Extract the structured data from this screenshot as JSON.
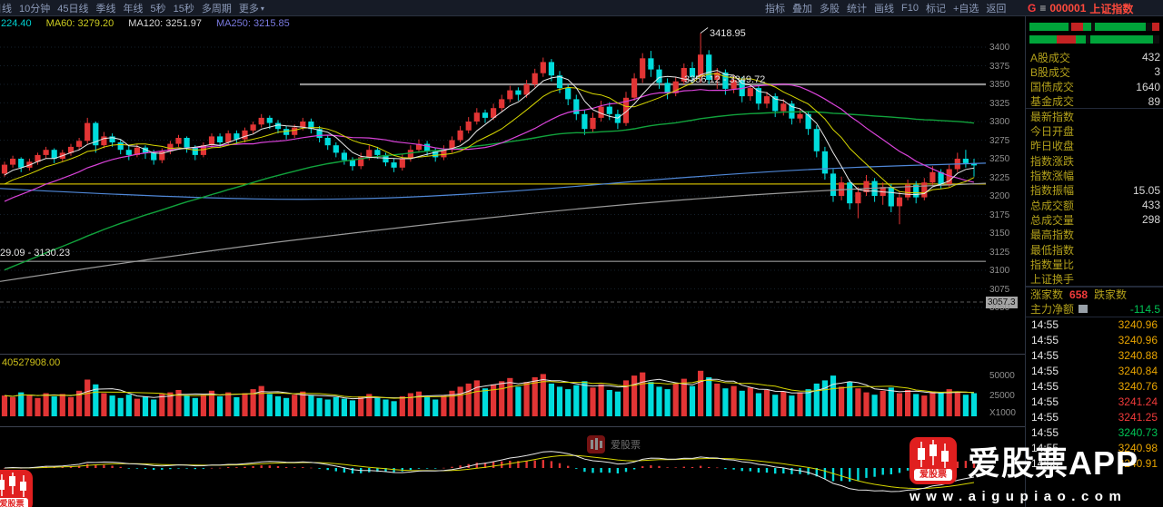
{
  "toolbar": {
    "left_items": [
      "日线",
      "10分钟",
      "45日线",
      "季线",
      "年线",
      "5秒",
      "15秒",
      "多周期",
      "更多"
    ],
    "more_arrow": "▾",
    "right_items": [
      "指标",
      "叠加",
      "多股",
      "统计",
      "画线",
      "F10",
      "标记",
      "+自选",
      "返回"
    ]
  },
  "symbol": {
    "prefix": "G",
    "eq": "≡",
    "code": "000001",
    "name": "上证指数"
  },
  "ma_labels": [
    {
      "text": "224.40",
      "color": "#00cfcf"
    },
    {
      "text": "MA60: 3279.20",
      "color": "#cdcd21"
    },
    {
      "text": "MA120: 3251.97",
      "color": "#d9d9d9"
    },
    {
      "text": "MA250: 3215.85",
      "color": "#7a7ae0"
    }
  ],
  "annotations": {
    "peak": "3418.95",
    "range_line": "3356.12 - 3349.72",
    "left_range": "29.09 - 3130.23",
    "axis_box": "3057.3",
    "volume_label": "40527908.00",
    "volume_axis": [
      "50000",
      "25000",
      "X1000"
    ]
  },
  "sidebar": {
    "breadth_rows": [
      [
        [
          "#00a43a",
          44
        ],
        [
          "#0d0d0d",
          4
        ],
        [
          "#c52323",
          13
        ],
        [
          "#00a43a",
          9
        ],
        [
          "#0d0d0d",
          5
        ],
        [
          "#00a43a",
          57
        ],
        [
          "#0d0d0d",
          8
        ],
        [
          "#c52323",
          8
        ]
      ],
      [
        [
          "#00a43a",
          30
        ],
        [
          "#c52323",
          21
        ],
        [
          "#00a43a",
          11
        ],
        [
          "#0d0d0d",
          5
        ],
        [
          "#00a43a",
          70
        ],
        [
          "#0d0d0d",
          7
        ]
      ]
    ],
    "stats": [
      {
        "label": "A股成交",
        "value": "432"
      },
      {
        "label": "B股成交",
        "value": "3"
      },
      {
        "label": "国债成交",
        "value": "1640"
      },
      {
        "label": "基金成交",
        "value": "89"
      },
      {
        "label": "最新指数",
        "value": ""
      },
      {
        "label": "今日开盘",
        "value": ""
      },
      {
        "label": "昨日收盘",
        "value": ""
      },
      {
        "label": "指数涨跌",
        "value": ""
      },
      {
        "label": "指数涨幅",
        "value": ""
      },
      {
        "label": "指数振幅",
        "value": "15.05"
      },
      {
        "label": "总成交额",
        "value": "433"
      },
      {
        "label": "总成交量",
        "value": "298"
      },
      {
        "label": "最高指数",
        "value": ""
      },
      {
        "label": "最低指数",
        "value": ""
      },
      {
        "label": "指数量比",
        "value": ""
      },
      {
        "label": "上证换手",
        "value": ""
      }
    ],
    "breadth_summary": {
      "up_label": "涨家数",
      "up_value": "658",
      "down_label": "跌家数"
    },
    "main_net": {
      "label": "主力净额",
      "value": "-114.5"
    },
    "ticks": [
      {
        "time": "14:55",
        "price": "3240.96",
        "color": "#e8a400"
      },
      {
        "time": "14:55",
        "price": "3240.96",
        "color": "#e8a400"
      },
      {
        "time": "14:55",
        "price": "3240.88",
        "color": "#e8a400"
      },
      {
        "time": "14:55",
        "price": "3240.84",
        "color": "#e8a400"
      },
      {
        "time": "14:55",
        "price": "3240.76",
        "color": "#e8a400"
      },
      {
        "time": "14:55",
        "price": "3241.24",
        "color": "#f03a3a"
      },
      {
        "time": "14:55",
        "price": "3241.25",
        "color": "#f03a3a"
      },
      {
        "time": "14:55",
        "price": "3240.73",
        "color": "#00c455"
      },
      {
        "time": "14:55",
        "price": "3240.98",
        "color": "#e8a400"
      },
      {
        "time": "14:55",
        "price": "3240.91",
        "color": "#e8a400"
      }
    ]
  },
  "branding": {
    "app_name": "爱股票APP",
    "url": "www.aigupiao.com",
    "icon_text": "爱股票"
  },
  "chart_data": {
    "type": "candlestick",
    "symbol": "000001 上证指数",
    "y_axis_ticks": [
      3400,
      3375,
      3350,
      3325,
      3300,
      3275,
      3250,
      3225,
      3200,
      3175,
      3150,
      3125,
      3100,
      3075,
      3050
    ],
    "ref_lines": {
      "yellow": 3216,
      "upper_gray": 3350,
      "lower_gray": 3112,
      "dashed": 3057.3
    },
    "peak_value": 3418.95,
    "candles": [
      [
        3230,
        3246,
        3226,
        3242
      ],
      [
        3242,
        3254,
        3238,
        3250
      ],
      [
        3250,
        3252,
        3232,
        3238
      ],
      [
        3238,
        3250,
        3234,
        3246
      ],
      [
        3246,
        3258,
        3242,
        3255
      ],
      [
        3255,
        3266,
        3250,
        3262
      ],
      [
        3262,
        3264,
        3244,
        3250
      ],
      [
        3250,
        3262,
        3246,
        3258
      ],
      [
        3258,
        3270,
        3254,
        3266
      ],
      [
        3266,
        3278,
        3262,
        3274
      ],
      [
        3274,
        3305,
        3270,
        3298
      ],
      [
        3298,
        3300,
        3258,
        3268
      ],
      [
        3268,
        3286,
        3264,
        3280
      ],
      [
        3280,
        3284,
        3266,
        3272
      ],
      [
        3272,
        3276,
        3256,
        3262
      ],
      [
        3262,
        3268,
        3248,
        3255
      ],
      [
        3255,
        3270,
        3252,
        3265
      ],
      [
        3265,
        3268,
        3250,
        3258
      ],
      [
        3258,
        3262,
        3242,
        3248
      ],
      [
        3248,
        3264,
        3244,
        3260
      ],
      [
        3260,
        3274,
        3256,
        3270
      ],
      [
        3270,
        3282,
        3266,
        3278
      ],
      [
        3278,
        3280,
        3258,
        3265
      ],
      [
        3265,
        3268,
        3248,
        3255
      ],
      [
        3255,
        3272,
        3252,
        3268
      ],
      [
        3268,
        3284,
        3264,
        3280
      ],
      [
        3280,
        3284,
        3266,
        3272
      ],
      [
        3272,
        3288,
        3268,
        3284
      ],
      [
        3284,
        3288,
        3270,
        3276
      ],
      [
        3276,
        3292,
        3272,
        3288
      ],
      [
        3288,
        3300,
        3284,
        3296
      ],
      [
        3296,
        3310,
        3292,
        3305
      ],
      [
        3305,
        3308,
        3290,
        3298
      ],
      [
        3298,
        3302,
        3284,
        3290
      ],
      [
        3290,
        3294,
        3276,
        3282
      ],
      [
        3282,
        3296,
        3278,
        3292
      ],
      [
        3292,
        3305,
        3288,
        3300
      ],
      [
        3300,
        3304,
        3284,
        3290
      ],
      [
        3290,
        3294,
        3272,
        3278
      ],
      [
        3278,
        3282,
        3262,
        3268
      ],
      [
        3268,
        3272,
        3252,
        3258
      ],
      [
        3258,
        3262,
        3242,
        3248
      ],
      [
        3248,
        3252,
        3234,
        3240
      ],
      [
        3240,
        3258,
        3236,
        3252
      ],
      [
        3252,
        3268,
        3248,
        3262
      ],
      [
        3262,
        3266,
        3250,
        3255
      ],
      [
        3255,
        3258,
        3240,
        3245
      ],
      [
        3245,
        3250,
        3232,
        3238
      ],
      [
        3238,
        3256,
        3234,
        3250
      ],
      [
        3250,
        3268,
        3246,
        3262
      ],
      [
        3262,
        3276,
        3258,
        3270
      ],
      [
        3270,
        3274,
        3254,
        3260
      ],
      [
        3260,
        3264,
        3246,
        3252
      ],
      [
        3252,
        3268,
        3248,
        3262
      ],
      [
        3262,
        3280,
        3258,
        3275
      ],
      [
        3275,
        3294,
        3272,
        3288
      ],
      [
        3288,
        3306,
        3284,
        3300
      ],
      [
        3300,
        3318,
        3296,
        3312
      ],
      [
        3312,
        3316,
        3298,
        3305
      ],
      [
        3305,
        3324,
        3302,
        3318
      ],
      [
        3318,
        3336,
        3314,
        3330
      ],
      [
        3330,
        3348,
        3326,
        3342
      ],
      [
        3342,
        3346,
        3328,
        3336
      ],
      [
        3336,
        3356,
        3332,
        3350
      ],
      [
        3350,
        3371,
        3346,
        3365
      ],
      [
        3365,
        3386,
        3360,
        3380
      ],
      [
        3380,
        3384,
        3354,
        3362
      ],
      [
        3362,
        3368,
        3338,
        3345
      ],
      [
        3345,
        3350,
        3322,
        3330
      ],
      [
        3330,
        3336,
        3302,
        3310
      ],
      [
        3310,
        3316,
        3282,
        3290
      ],
      [
        3290,
        3312,
        3286,
        3305
      ],
      [
        3305,
        3328,
        3300,
        3320
      ],
      [
        3320,
        3326,
        3302,
        3310
      ],
      [
        3310,
        3316,
        3290,
        3298
      ],
      [
        3298,
        3340,
        3294,
        3332
      ],
      [
        3332,
        3365,
        3328,
        3358
      ],
      [
        3358,
        3392,
        3352,
        3385
      ],
      [
        3385,
        3395,
        3360,
        3370
      ],
      [
        3370,
        3376,
        3344,
        3352
      ],
      [
        3352,
        3358,
        3330,
        3338
      ],
      [
        3338,
        3360,
        3334,
        3354
      ],
      [
        3354,
        3378,
        3350,
        3372
      ],
      [
        3372,
        3380,
        3352,
        3360
      ],
      [
        3360,
        3418.95,
        3352,
        3390
      ],
      [
        3390,
        3396,
        3350,
        3356
      ],
      [
        3356,
        3372,
        3344,
        3366
      ],
      [
        3366,
        3370,
        3336,
        3344
      ],
      [
        3344,
        3362,
        3338,
        3356
      ],
      [
        3356,
        3360,
        3326,
        3334
      ],
      [
        3334,
        3350,
        3328,
        3345
      ],
      [
        3345,
        3348,
        3316,
        3324
      ],
      [
        3324,
        3340,
        3318,
        3334
      ],
      [
        3334,
        3338,
        3306,
        3314
      ],
      [
        3314,
        3330,
        3308,
        3324
      ],
      [
        3324,
        3328,
        3296,
        3304
      ],
      [
        3304,
        3318,
        3298,
        3310
      ],
      [
        3310,
        3314,
        3282,
        3290
      ],
      [
        3290,
        3295,
        3252,
        3260
      ],
      [
        3260,
        3266,
        3222,
        3230
      ],
      [
        3230,
        3236,
        3192,
        3200
      ],
      [
        3200,
        3226,
        3194,
        3218
      ],
      [
        3218,
        3222,
        3182,
        3190
      ],
      [
        3190,
        3212,
        3170,
        3205
      ],
      [
        3205,
        3228,
        3200,
        3220
      ],
      [
        3220,
        3224,
        3192,
        3200
      ],
      [
        3200,
        3218,
        3188,
        3212
      ],
      [
        3212,
        3216,
        3178,
        3186
      ],
      [
        3186,
        3206,
        3162,
        3198
      ],
      [
        3198,
        3222,
        3194,
        3215
      ],
      [
        3215,
        3220,
        3190,
        3198
      ],
      [
        3198,
        3224,
        3194,
        3218
      ],
      [
        3218,
        3240,
        3214,
        3232
      ],
      [
        3232,
        3236,
        3210,
        3216
      ],
      [
        3216,
        3242,
        3212,
        3236
      ],
      [
        3236,
        3258,
        3232,
        3250
      ],
      [
        3250,
        3262,
        3238,
        3244
      ],
      [
        3244,
        3250,
        3226,
        3241
      ]
    ],
    "volumes": [
      26,
      24,
      30,
      27,
      23,
      29,
      25,
      28,
      24,
      32,
      46,
      40,
      29,
      26,
      23,
      27,
      22,
      25,
      21,
      28,
      30,
      33,
      26,
      23,
      27,
      32,
      25,
      30,
      24,
      29,
      34,
      38,
      28,
      25,
      23,
      27,
      31,
      26,
      23,
      21,
      24,
      22,
      20,
      25,
      28,
      23,
      21,
      19,
      25,
      29,
      31,
      24,
      21,
      26,
      32,
      37,
      41,
      45,
      35,
      40,
      44,
      48,
      37,
      43,
      49,
      53,
      41,
      37,
      34,
      39,
      44,
      36,
      40,
      33,
      31,
      45,
      51,
      55,
      43,
      37,
      34,
      41,
      47,
      38,
      57,
      49,
      41,
      35,
      38,
      32,
      36,
      29,
      33,
      27,
      31,
      26,
      30,
      34,
      41,
      45,
      51,
      37,
      43,
      35,
      30,
      27,
      32,
      36,
      29,
      33,
      28,
      26,
      31,
      29,
      34,
      30,
      27,
      29
    ],
    "volume_unit": "X1000",
    "volume_axis_ticks": [
      50000,
      25000
    ],
    "indicator": "MACD"
  }
}
